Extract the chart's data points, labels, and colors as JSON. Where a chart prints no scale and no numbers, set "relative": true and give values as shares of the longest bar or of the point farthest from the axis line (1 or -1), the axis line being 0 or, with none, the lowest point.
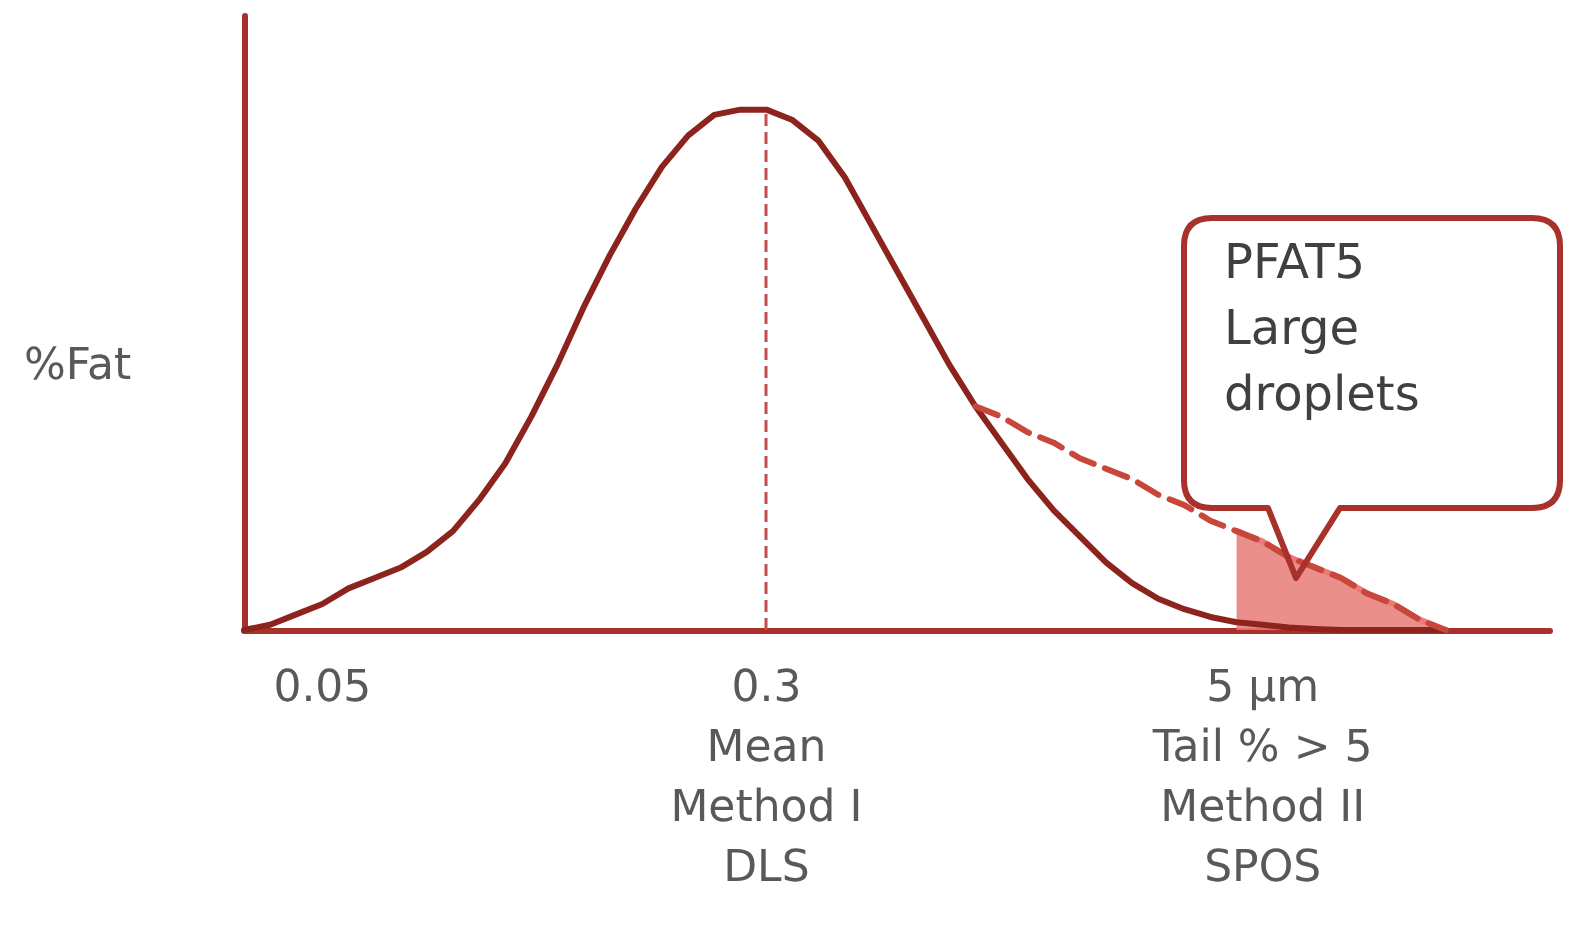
{
  "chart_data": {
    "type": "line",
    "relative": true,
    "ylabel": "%Fat",
    "categories": [
      null,
      null,
      null,
      "0.05",
      null,
      null,
      null,
      null,
      null,
      null,
      null,
      null,
      null,
      null,
      null,
      null,
      null,
      null,
      null,
      null,
      "0.3\nMean\nMethod I\nDLS",
      null,
      null,
      null,
      null,
      null,
      null,
      null,
      null,
      null,
      null,
      null,
      null,
      null,
      null,
      null,
      null,
      null,
      null,
      "5 µm\nTail % > 5\nMethod II\nSPOS",
      null,
      null,
      null,
      null,
      null,
      null,
      null,
      null,
      null,
      null,
      null
    ],
    "series": [
      {
        "type": "area",
        "color": "#e87b78",
        "values": [
          null,
          null,
          null,
          null,
          null,
          null,
          null,
          null,
          null,
          null,
          null,
          null,
          null,
          null,
          null,
          null,
          null,
          null,
          null,
          null,
          null,
          null,
          null,
          null,
          null,
          null,
          null,
          null,
          null,
          null,
          null,
          null,
          null,
          null,
          null,
          null,
          null,
          null,
          0.19,
          0.17,
          0.14,
          0.12,
          0.1,
          0.07,
          0.05,
          0.02,
          0,
          null,
          null,
          null,
          null
        ]
      },
      {
        "color": "#8c231c",
        "values": [
          0,
          0.01,
          0.03,
          0.05,
          0.08,
          0.1,
          0.12,
          0.15,
          0.19,
          0.25,
          0.32,
          0.41,
          0.51,
          0.62,
          0.72,
          0.81,
          0.89,
          0.95,
          0.99,
          1,
          1,
          0.98,
          0.94,
          0.87,
          0.78,
          0.69,
          0.6,
          0.51,
          0.43,
          0.36,
          0.29,
          0.23,
          0.18,
          0.13,
          0.09,
          0.06,
          0.04,
          0.025,
          0.015,
          0.01,
          0.005,
          0.002,
          0,
          0,
          0,
          0,
          0,
          null,
          null,
          null,
          null
        ]
      },
      {
        "color": "#c9463a",
        "line_style": "dashed",
        "values": [
          null,
          null,
          null,
          null,
          null,
          null,
          null,
          null,
          null,
          null,
          null,
          null,
          null,
          null,
          null,
          null,
          null,
          null,
          null,
          null,
          null,
          null,
          null,
          null,
          null,
          null,
          null,
          null,
          0.43,
          0.41,
          0.38,
          0.36,
          0.33,
          0.31,
          0.29,
          0.26,
          0.24,
          0.21,
          0.19,
          0.17,
          0.14,
          0.12,
          0.1,
          0.07,
          0.05,
          0.02,
          0,
          null,
          null,
          null,
          null
        ]
      }
    ],
    "marker": "none",
    "ref_lines": [
      {
        "axis": "x",
        "value": "0.3\nMean\nMethod I\nDLS",
        "color": "#c0504d",
        "line_style": "dashed"
      }
    ],
    "annotations": [
      "PFAT5\nLarge\ndroplets"
    ],
    "grid": false
  }
}
